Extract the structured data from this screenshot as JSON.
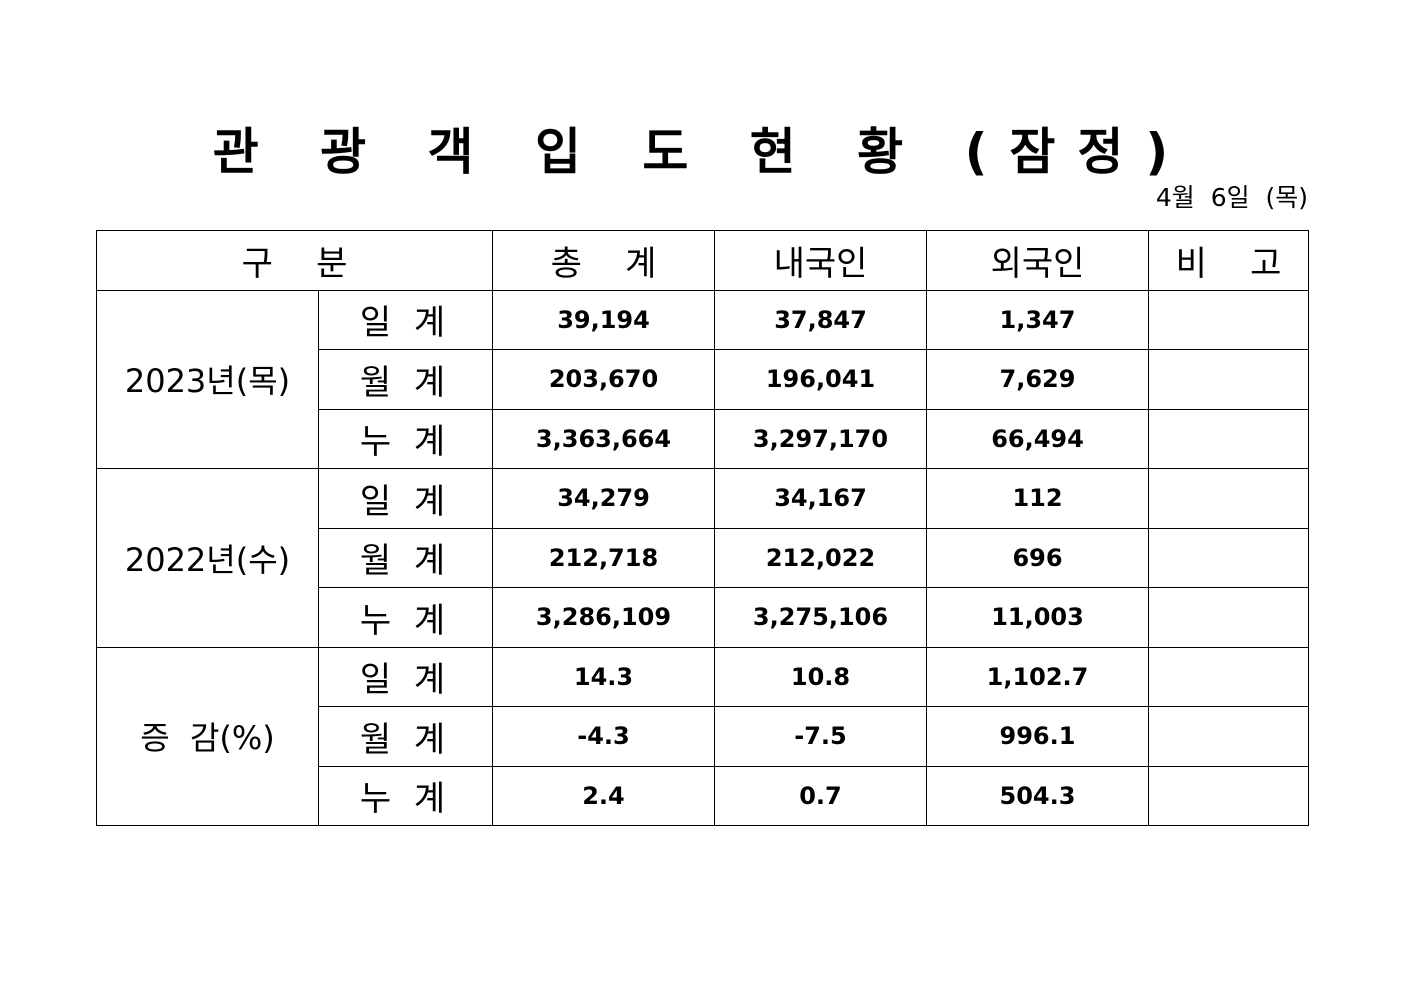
{
  "title": "관 광 객 입 도 현 황 (잠정)",
  "date": "4월  6일  (목)",
  "table": {
    "headers": [
      "구    분",
      "총    계",
      "내국인",
      "외국인",
      "비    고"
    ],
    "groups": [
      {
        "label": "2023년(목)",
        "rows": [
          {
            "sub": "일 계",
            "total": "39,194",
            "domestic": "37,847",
            "foreign": "1,347",
            "note": ""
          },
          {
            "sub": "월 계",
            "total": "203,670",
            "domestic": "196,041",
            "foreign": "7,629",
            "note": ""
          },
          {
            "sub": "누 계",
            "total": "3,363,664",
            "domestic": "3,297,170",
            "foreign": "66,494",
            "note": ""
          }
        ]
      },
      {
        "label": "2022년(수)",
        "rows": [
          {
            "sub": "일 계",
            "total": "34,279",
            "domestic": "34,167",
            "foreign": "112",
            "note": ""
          },
          {
            "sub": "월 계",
            "total": "212,718",
            "domestic": "212,022",
            "foreign": "696",
            "note": ""
          },
          {
            "sub": "누 계",
            "total": "3,286,109",
            "domestic": "3,275,106",
            "foreign": "11,003",
            "note": ""
          }
        ]
      },
      {
        "label": "증  감(%)",
        "rows": [
          {
            "sub": "일 계",
            "total": "14.3",
            "domestic": "10.8",
            "foreign": "1,102.7",
            "note": ""
          },
          {
            "sub": "월 계",
            "total": "-4.3",
            "domestic": "-7.5",
            "foreign": "996.1",
            "note": ""
          },
          {
            "sub": "누 계",
            "total": "2.4",
            "domestic": "0.7",
            "foreign": "504.3",
            "note": ""
          }
        ]
      }
    ]
  }
}
